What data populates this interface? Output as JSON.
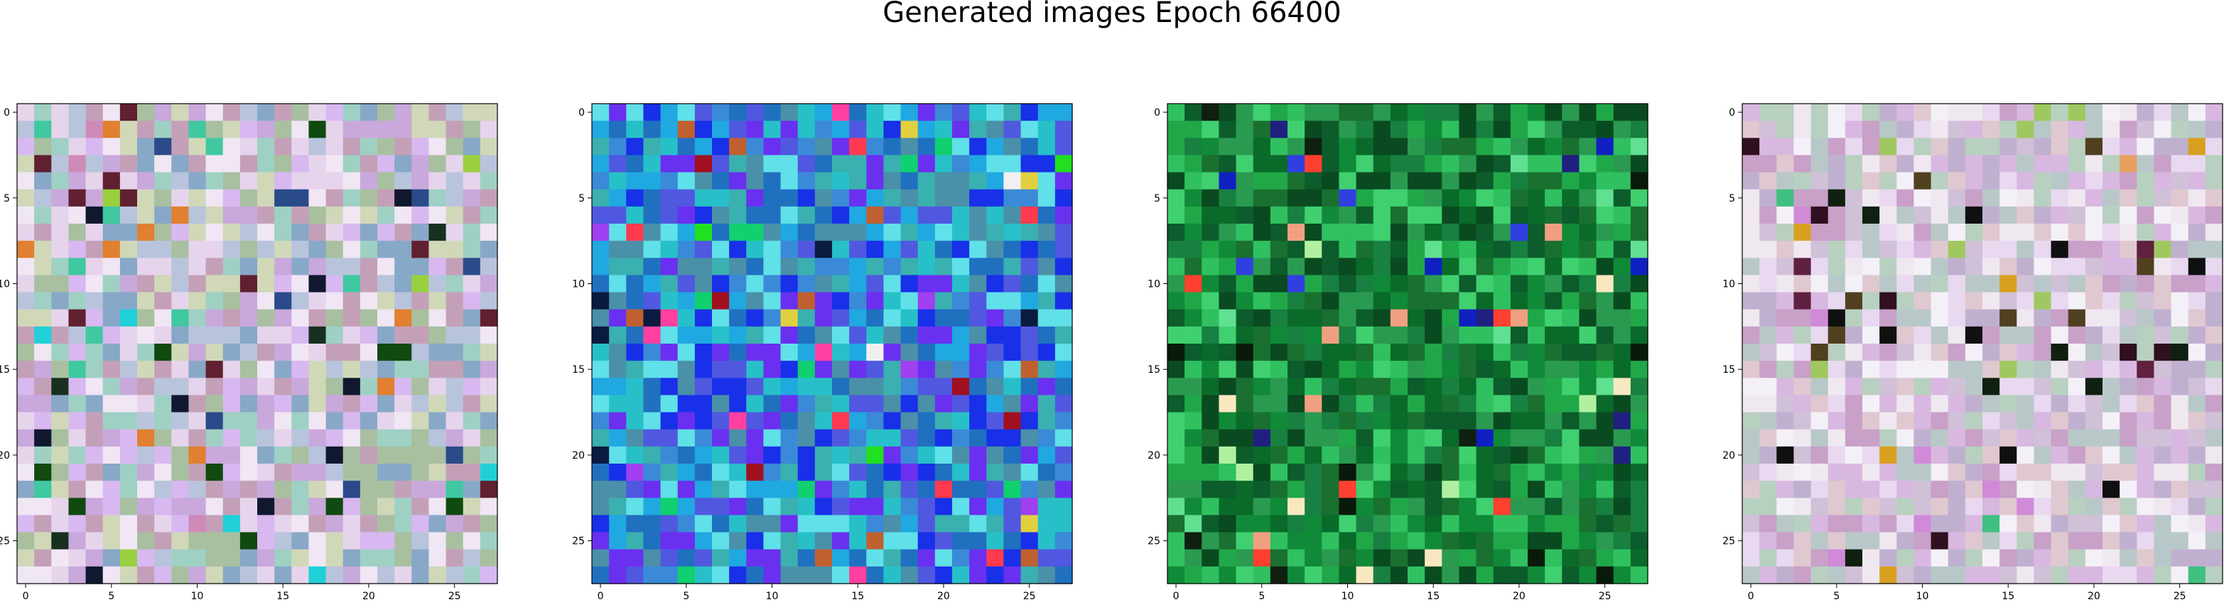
{
  "figure": {
    "title": "Generated images Epoch 66400"
  },
  "chart_data": [
    {
      "type": "heatmap",
      "title": "",
      "xlabel": "",
      "ylabel": "",
      "grid_size": 28,
      "xlim": [
        -0.5,
        27.5
      ],
      "ylim": [
        27.5,
        -0.5
      ],
      "x_ticks": [
        0,
        5,
        10,
        15,
        20,
        25
      ],
      "y_ticks": [
        0,
        5,
        10,
        15,
        20,
        25
      ],
      "grid": false,
      "palette": [
        "#c9a8dc",
        "#b8c4dc",
        "#e6d4ec",
        "#9fd0c4",
        "#c4a0b8",
        "#d8b8f0",
        "#a8c0a0",
        "#f0e6f4",
        "#88a8c8",
        "#d0d8b8"
      ],
      "accents": [
        "#101830",
        "#183020",
        "#104a10",
        "#2a4a8a",
        "#602030",
        "#d08ab8",
        "#40c8a0",
        "#e08030",
        "#9ad040",
        "#20d0d8"
      ]
    },
    {
      "type": "heatmap",
      "title": "",
      "xlabel": "",
      "ylabel": "",
      "grid_size": 28,
      "xlim": [
        -0.5,
        27.5
      ],
      "ylim": [
        27.5,
        -0.5
      ],
      "x_ticks": [
        0,
        5,
        10,
        15,
        20,
        25
      ],
      "y_ticks": [
        0,
        5,
        10,
        15,
        20,
        25
      ],
      "grid": false,
      "palette": [
        "#3a8ad8",
        "#28c0c8",
        "#1830e8",
        "#5058e0",
        "#3ab0b0",
        "#6a30f0",
        "#20a8e0",
        "#4a90a8",
        "#60e0e8",
        "#2070c0"
      ],
      "accents": [
        "#ff40a0",
        "#f0f0f0",
        "#a01020",
        "#e0d040",
        "#ff3a50",
        "#10d070",
        "#0a1a40",
        "#20e020",
        "#c06030",
        "#a040f0"
      ]
    },
    {
      "type": "heatmap",
      "title": "",
      "xlabel": "",
      "ylabel": "",
      "grid_size": 28,
      "xlim": [
        -0.5,
        27.5
      ],
      "ylim": [
        27.5,
        -0.5
      ],
      "x_ticks": [
        0,
        5,
        10,
        15,
        20,
        25
      ],
      "y_ticks": [
        0,
        5,
        10,
        15,
        20,
        25
      ],
      "grid": false,
      "palette": [
        "#0a6a2a",
        "#108a38",
        "#20a848",
        "#0a4a20",
        "#30c060",
        "#188040",
        "#0c5c2c",
        "#2a9a50",
        "#1a7030",
        "#40d070"
      ],
      "accents": [
        "#ff4030",
        "#f0a080",
        "#1020c0",
        "#102010",
        "#b0f0a0",
        "#f8e8c0",
        "#202080",
        "#0a1a0a",
        "#60e090",
        "#3040e0"
      ]
    },
    {
      "type": "heatmap",
      "title": "",
      "xlabel": "",
      "ylabel": "",
      "grid_size": 28,
      "xlim": [
        -0.5,
        27.5
      ],
      "ylim": [
        27.5,
        -0.5
      ],
      "x_ticks": [
        0,
        5,
        10,
        15,
        20,
        25
      ],
      "y_ticks": [
        0,
        5,
        10,
        15,
        20,
        25
      ],
      "grid": false,
      "palette": [
        "#d8b8e0",
        "#c8a0c8",
        "#e8d8f0",
        "#b8c8c8",
        "#f0e8f0",
        "#d0c0d8",
        "#c0b0d0",
        "#e0c8d0",
        "#b8d0c0",
        "#f4f0f8"
      ],
      "accents": [
        "#301020",
        "#d08ad8",
        "#e8a060",
        "#102010",
        "#602040",
        "#40c080",
        "#101010",
        "#d8a020",
        "#a0c860",
        "#504020"
      ]
    }
  ]
}
